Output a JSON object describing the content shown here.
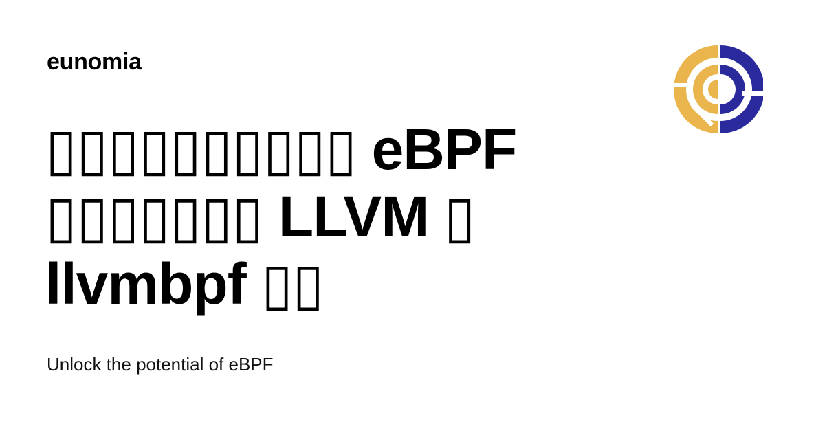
{
  "site": {
    "name": "eunomia"
  },
  "headline": {
    "line1": "▯▯▯▯▯▯▯▯▯▯ eBPF",
    "line2": "▯▯▯▯▯▯▯ LLVM ▯",
    "line3": "llvmbpf ▯▯"
  },
  "tagline": {
    "text": "Unlock the potential of eBPF"
  },
  "logo": {
    "icon": "eunomia-logo-icon",
    "colors": {
      "left": "#E9B54C",
      "right": "#2A2A9C"
    }
  }
}
